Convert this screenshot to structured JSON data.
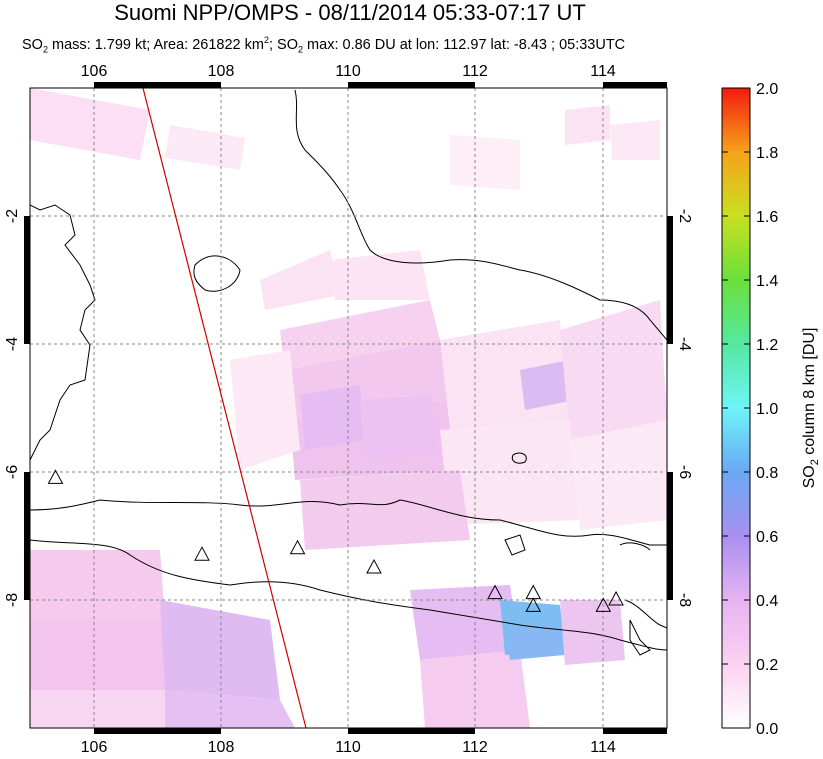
{
  "title": "Suomi NPP/OMPS - 08/11/2014 05:33-07:17 UT",
  "subtitle": {
    "p1": "SO",
    "p1_sub": "2",
    "p2": " mass: 1.799 kt; Area: 261822 km",
    "p2_sup": "2",
    "p3": "; SO",
    "p3_sub": "2",
    "p4": " max: 0.86 DU at lon: 112.97 lat: -8.43 ; 05:33UTC"
  },
  "map": {
    "lon_ticks": [
      "106",
      "108",
      "110",
      "112",
      "114"
    ],
    "lat_ticks": [
      "-2",
      "-4",
      "-6",
      "-8"
    ],
    "lon_range": [
      105,
      115
    ],
    "lat_range": [
      -10,
      0
    ]
  },
  "colorbar": {
    "ticks": [
      "2.0",
      "1.8",
      "1.6",
      "1.4",
      "1.2",
      "1.0",
      "0.8",
      "0.6",
      "0.4",
      "0.2",
      "0.0"
    ],
    "label_a": "SO",
    "label_sub": "2",
    "label_b": " column 8 km [DU]",
    "range": [
      0,
      2
    ]
  },
  "volcanoes": [
    {
      "lon": 105.4,
      "lat": -6.1
    },
    {
      "lon": 107.7,
      "lat": -7.3
    },
    {
      "lon": 109.2,
      "lat": -7.2
    },
    {
      "lon": 110.4,
      "lat": -7.5
    },
    {
      "lon": 112.3,
      "lat": -7.9
    },
    {
      "lon": 112.9,
      "lat": -7.9
    },
    {
      "lon": 112.9,
      "lat": -8.1
    },
    {
      "lon": 114.0,
      "lat": -8.1
    },
    {
      "lon": 114.2,
      "lat": -8.0
    }
  ],
  "colors": {
    "line": "#d00000",
    "pale_pink": "#fbe3f3",
    "light_pink": "#f6c8ee",
    "lilac": "#e2baf2",
    "light_blue": "#7dbdf2"
  }
}
